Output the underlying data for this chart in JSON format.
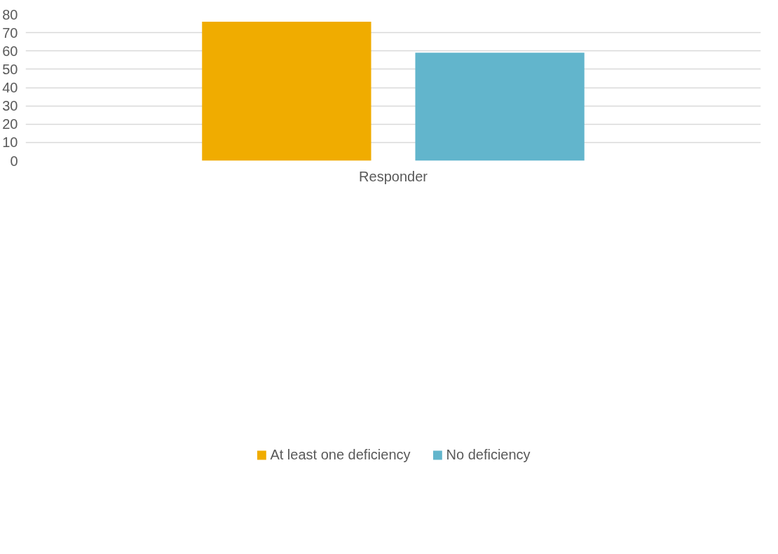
{
  "chart_data": {
    "type": "bar",
    "categories": [
      "Responder"
    ],
    "series": [
      {
        "name": "At least one deficiency",
        "color": "#f0ac00",
        "values": [
          76
        ]
      },
      {
        "name": "No deficiency",
        "color": "#62b5cc",
        "values": [
          59
        ]
      }
    ],
    "ylim": [
      0,
      80
    ],
    "yticks": [
      0,
      10,
      20,
      30,
      40,
      50,
      60,
      70,
      80
    ],
    "grid": "y",
    "legend": "bottom"
  }
}
